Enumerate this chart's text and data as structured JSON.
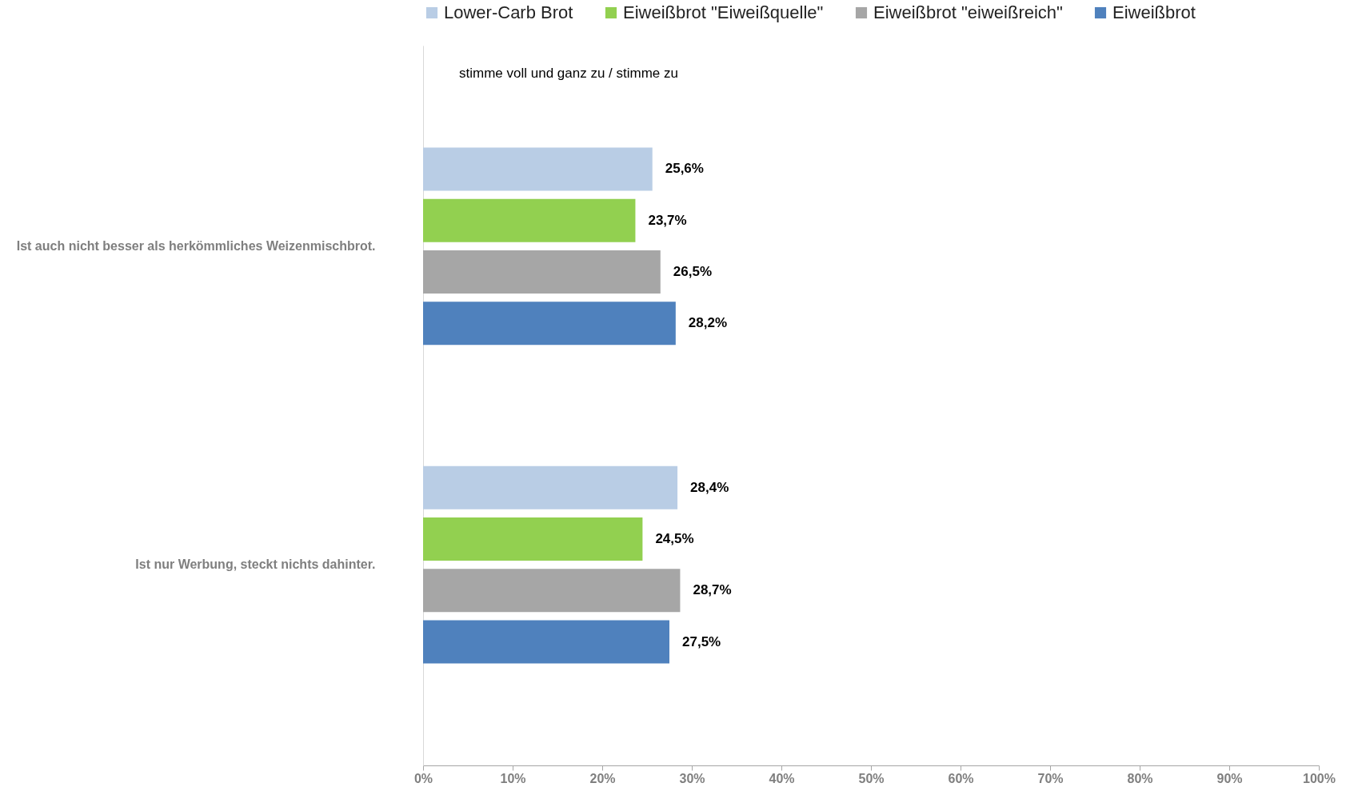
{
  "chart_data": {
    "type": "bar",
    "orientation": "horizontal",
    "categories": [
      "Ist auch nicht besser als herkömmliches Weizenmischbrot.",
      "Ist nur Werbung, steckt nichts dahinter."
    ],
    "series": [
      {
        "name": "Lower-Carb Brot",
        "color": "#b9cde5",
        "values": [
          25.6,
          28.4
        ],
        "value_labels": [
          "25,6%",
          "28,4%"
        ]
      },
      {
        "name": "Eiweißbrot \"Eiweißquelle\"",
        "color": "#92d050",
        "values": [
          23.7,
          24.5
        ],
        "value_labels": [
          "23,7%",
          "24,5%"
        ]
      },
      {
        "name": "Eiweißbrot \"eiweißreich\"",
        "color": "#a6a6a6",
        "values": [
          26.5,
          28.7
        ],
        "value_labels": [
          "26,5%",
          "28,7%"
        ]
      },
      {
        "name": "Eiweißbrot",
        "color": "#4f81bd",
        "values": [
          28.2,
          27.5
        ],
        "value_labels": [
          "28,2%",
          "27,5%"
        ]
      }
    ],
    "xlim": [
      0,
      100
    ],
    "xticks": [
      {
        "value": 0,
        "label": "0%"
      },
      {
        "value": 10,
        "label": "10%"
      },
      {
        "value": 20,
        "label": "20%"
      },
      {
        "value": 30,
        "label": "30%"
      },
      {
        "value": 40,
        "label": "40%"
      },
      {
        "value": 50,
        "label": "50%"
      },
      {
        "value": 60,
        "label": "60%"
      },
      {
        "value": 70,
        "label": "70%"
      },
      {
        "value": 80,
        "label": "80%"
      },
      {
        "value": 90,
        "label": "90%"
      },
      {
        "value": 100,
        "label": "100%"
      }
    ],
    "annotations": [
      "stimme voll und ganz zu / stimme zu"
    ],
    "legend": "top",
    "grid": false
  }
}
